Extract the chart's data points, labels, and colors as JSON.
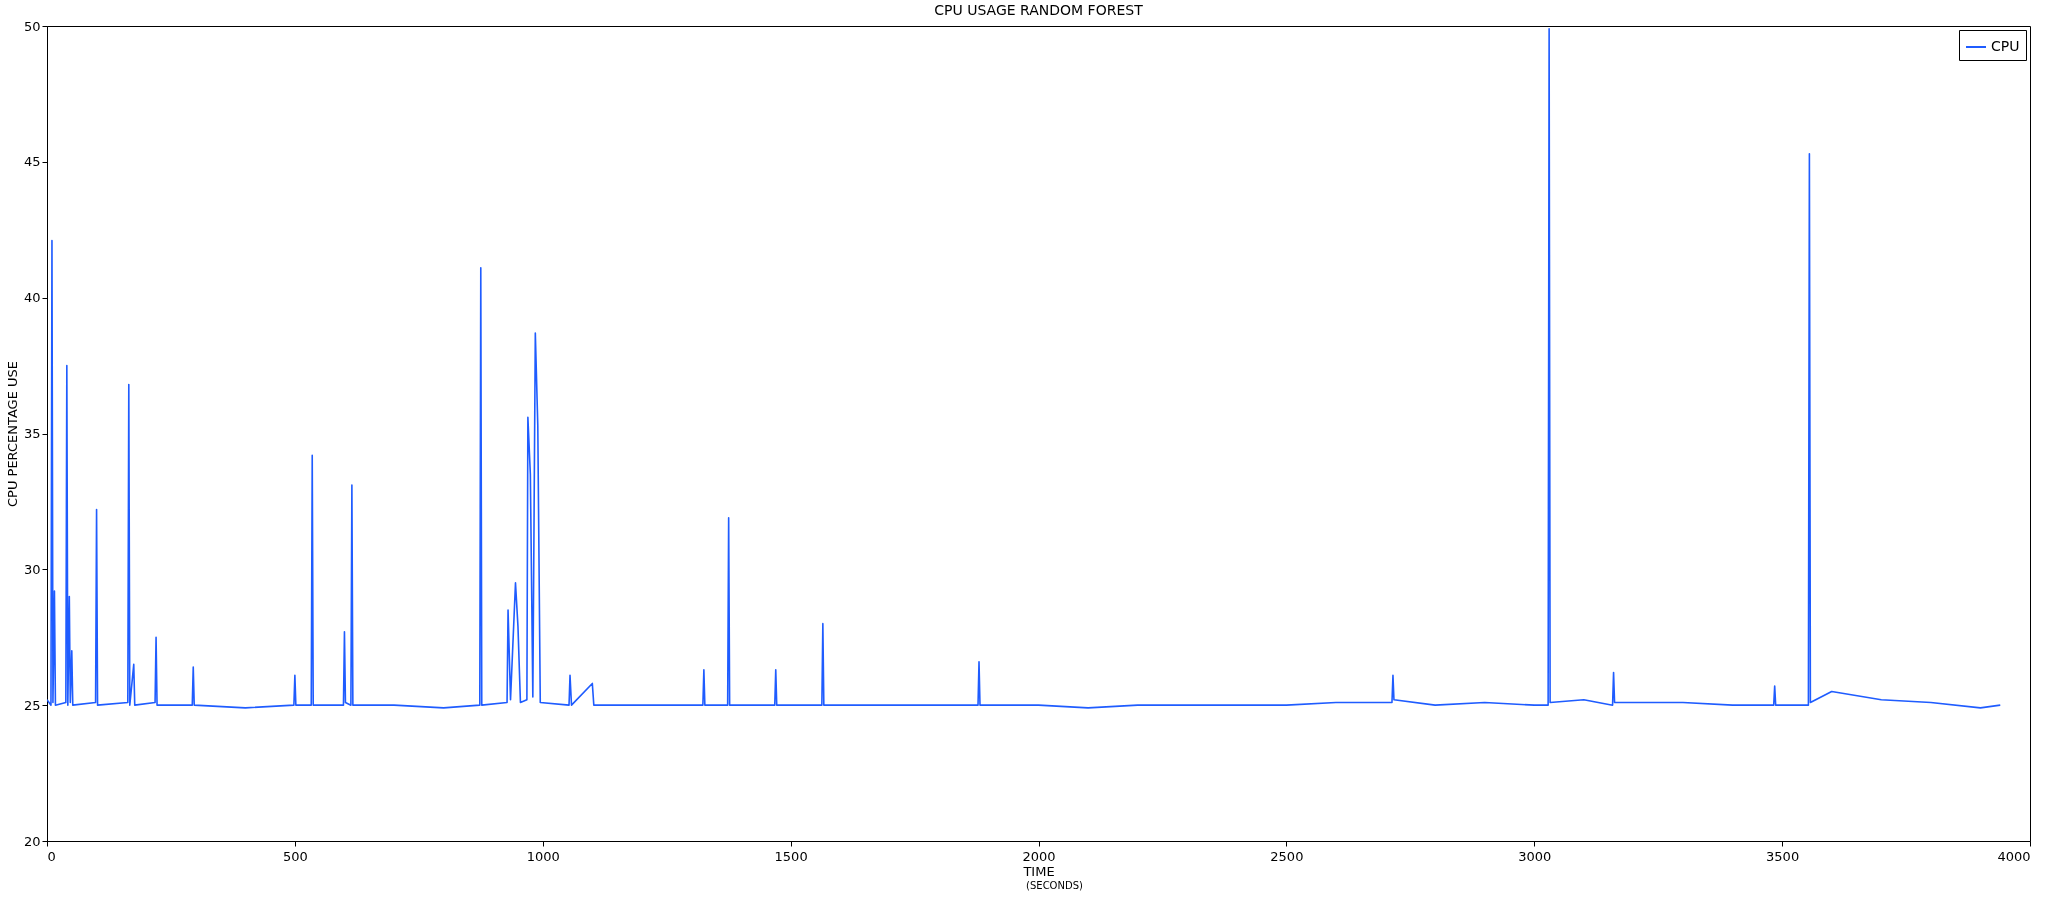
{
  "chart_data": {
    "type": "line",
    "title": "CPU USAGE RANDOM FOREST",
    "xlabel": "TIME",
    "ylabel": "CPU PERCENTAGE USE",
    "annotations": [
      "(SECONDS)"
    ],
    "xlim": [
      0,
      4000
    ],
    "xticks": [
      0,
      500,
      1000,
      1500,
      2000,
      2500,
      3000,
      3500,
      4000
    ],
    "ylim": [
      20,
      50
    ],
    "yticks": [
      20,
      25,
      30,
      35,
      40,
      45,
      50
    ],
    "grid": false,
    "legend": "top right",
    "series": [
      {
        "name": "CPU",
        "color": "#1f5cff",
        "x": [
          0,
          8,
          10,
          12,
          15,
          17,
          38,
          40,
          42,
          45,
          47,
          50,
          52,
          98,
          100,
          102,
          163,
          165,
          167,
          175,
          177,
          218,
          220,
          222,
          293,
          295,
          297,
          400,
          498,
          500,
          502,
          533,
          535,
          537,
          598,
          600,
          602,
          613,
          615,
          617,
          700,
          800,
          873,
          875,
          877,
          928,
          930,
          935,
          945,
          950,
          955,
          968,
          970,
          975,
          980,
          985,
          990,
          995,
          1053,
          1055,
          1058,
          1100,
          1103,
          1200,
          1323,
          1325,
          1327,
          1373,
          1375,
          1377,
          1468,
          1470,
          1472,
          1563,
          1565,
          1567,
          1700,
          1878,
          1880,
          1882,
          2000,
          2100,
          2200,
          2300,
          2400,
          2500,
          2600,
          2713,
          2715,
          2717,
          2800,
          2900,
          3000,
          3028,
          3030,
          3032,
          3100,
          3158,
          3160,
          3162,
          3300,
          3400,
          3483,
          3485,
          3487,
          3553,
          3555,
          3557,
          3600,
          3700,
          3800,
          3900,
          3940
        ],
        "values": [
          25.2,
          25.0,
          42.1,
          25.1,
          29.2,
          25.0,
          25.1,
          37.5,
          25.0,
          29.0,
          25.1,
          27.0,
          25.0,
          25.1,
          32.2,
          25.0,
          25.1,
          36.8,
          25.0,
          26.5,
          25.0,
          25.1,
          27.5,
          25.0,
          25.0,
          26.4,
          25.0,
          24.9,
          25.0,
          26.1,
          25.0,
          25.0,
          34.2,
          25.0,
          25.0,
          27.7,
          25.1,
          25.0,
          33.1,
          25.0,
          25.0,
          24.9,
          25.0,
          41.1,
          25.0,
          25.1,
          28.5,
          25.2,
          29.5,
          27.9,
          25.1,
          25.2,
          35.6,
          33.5,
          25.3,
          38.7,
          35.3,
          25.1,
          25.0,
          26.1,
          25.0,
          25.8,
          25.0,
          25.0,
          25.0,
          26.3,
          25.0,
          25.0,
          31.9,
          25.0,
          25.0,
          26.3,
          25.0,
          25.0,
          28.0,
          25.0,
          25.0,
          25.0,
          26.6,
          25.0,
          25.0,
          24.9,
          25.0,
          25.0,
          25.0,
          25.0,
          25.1,
          25.1,
          26.1,
          25.2,
          25.0,
          25.1,
          25.0,
          25.0,
          49.9,
          25.1,
          25.2,
          25.0,
          26.2,
          25.1,
          25.1,
          25.0,
          25.0,
          25.7,
          25.0,
          25.0,
          45.3,
          25.1,
          25.5,
          25.2,
          25.1,
          24.9,
          25.0
        ]
      }
    ]
  }
}
